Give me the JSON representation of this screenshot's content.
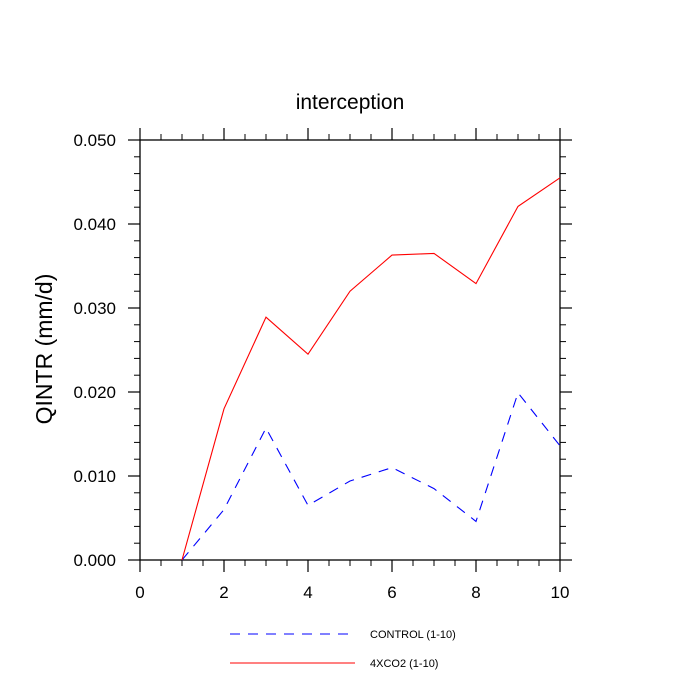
{
  "chart_data": {
    "type": "line",
    "title": "interception",
    "xlabel": "",
    "ylabel": "QINTR  (mm/d)",
    "xlim": [
      0,
      10
    ],
    "ylim": [
      0,
      0.05
    ],
    "x_ticks": [
      "0",
      "2",
      "4",
      "6",
      "8",
      "10"
    ],
    "y_ticks": [
      "0.000",
      "0.010",
      "0.020",
      "0.030",
      "0.040",
      "0.050"
    ],
    "grid": false,
    "legend_position": "bottom",
    "series": [
      {
        "name": "CONTROL (1-10)",
        "color": "#0000ff",
        "line_style": "dashed",
        "x": [
          1,
          2,
          3,
          4,
          5,
          6,
          7,
          8,
          9,
          10
        ],
        "y": [
          0.0,
          0.006,
          0.0157,
          0.0065,
          0.0094,
          0.011,
          0.0085,
          0.0046,
          0.0199,
          0.0136
        ]
      },
      {
        "name": "4XCO2 (1-10)",
        "color": "#ff0000",
        "line_style": "solid",
        "x": [
          1,
          2,
          3,
          4,
          5,
          6,
          7,
          8,
          9,
          10
        ],
        "y": [
          0.0,
          0.018,
          0.0289,
          0.0245,
          0.032,
          0.0363,
          0.0365,
          0.0329,
          0.0421,
          0.0455
        ]
      }
    ]
  }
}
